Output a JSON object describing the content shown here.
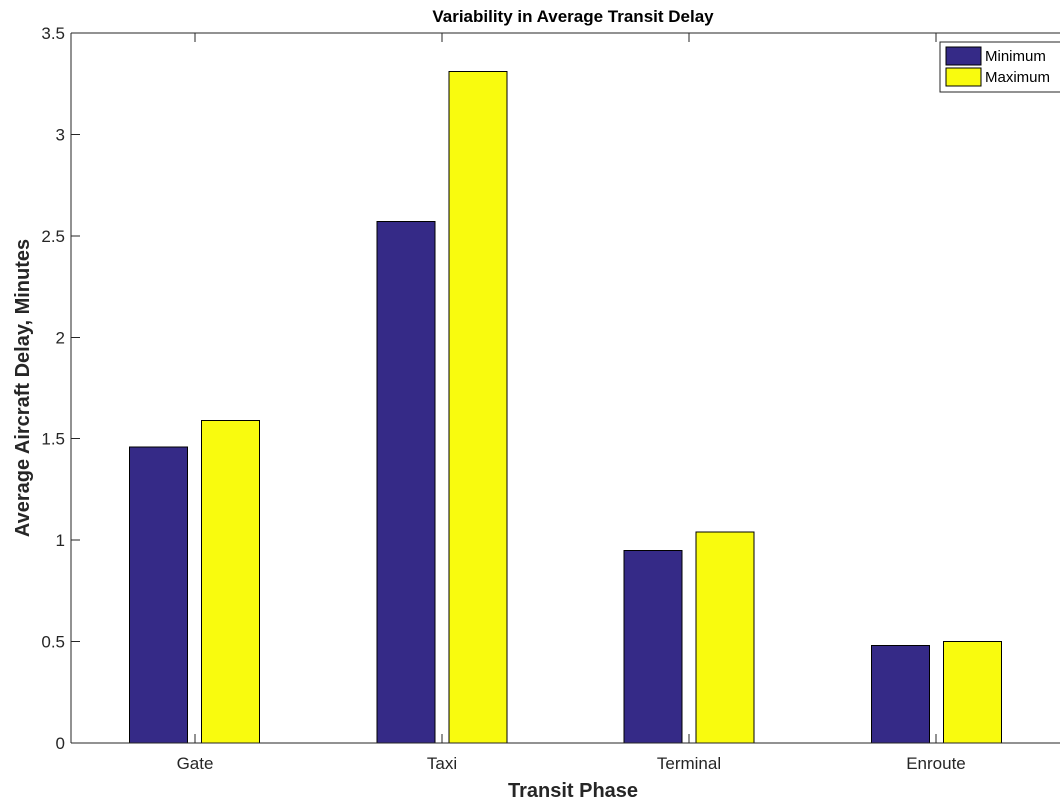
{
  "chart_data": {
    "type": "bar",
    "title": "Variability in Average Transit Delay",
    "xlabel": "Transit Phase",
    "ylabel": "Average Aircraft Delay, Minutes",
    "categories": [
      "Gate",
      "Taxi",
      "Terminal",
      "Enroute"
    ],
    "series": [
      {
        "name": "Minimum",
        "color": "#352a87",
        "values": [
          1.46,
          2.57,
          0.95,
          0.48
        ]
      },
      {
        "name": "Maximum",
        "color": "#f9fb0e",
        "values": [
          1.59,
          3.31,
          1.04,
          0.5
        ]
      }
    ],
    "ylim": [
      0,
      3.5
    ],
    "yticks": [
      "0",
      "0.5",
      "1",
      "1.5",
      "2",
      "2.5",
      "3",
      "3.5"
    ],
    "grid": false,
    "legend_position": "top-right"
  }
}
